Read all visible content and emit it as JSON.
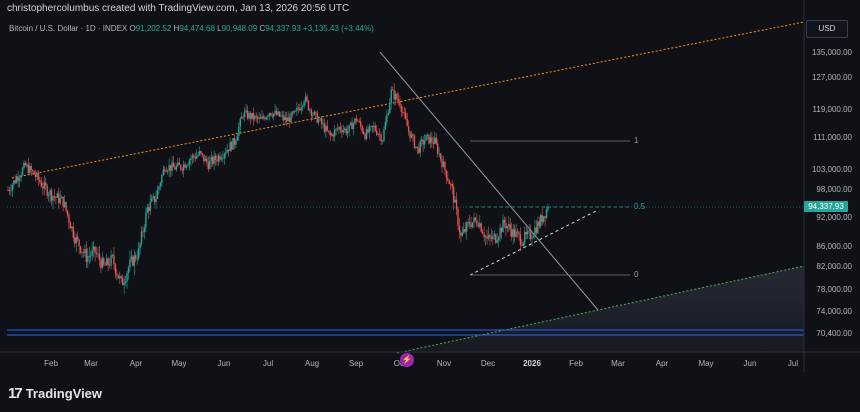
{
  "header": {
    "title": "christophercolumbus created with TradingView.com, Jan 13, 2026 20:56 UTC"
  },
  "legend": {
    "symbol": "Bitcoin / U.S. Dollar · 1D · INDEX",
    "open_label": "O",
    "open": "91,202.52",
    "high_label": "H",
    "high": "94,474.68",
    "low_label": "L",
    "low": "90,948.09",
    "close_label": "C",
    "close": "94,337.93",
    "change": "+3,135.43 (+3.44%)"
  },
  "currency": "USD",
  "current_price": "94,337.93",
  "fib_levels": [
    {
      "label": "1",
      "price": 110000
    },
    {
      "label": "0.5",
      "price": 94500
    },
    {
      "label": "0",
      "price": 80500
    }
  ],
  "event_icon": "lightning-icon",
  "branding": {
    "name": "TradingView",
    "logo_icon": "tradingview-logo-icon"
  },
  "colors": {
    "up": "#26a69a",
    "down": "#ef5350",
    "orange_trend": "#f7931a",
    "green_trend": "#4caf50",
    "blue_lines": "#2962ff",
    "background": "#0f1117"
  },
  "chart_data": {
    "type": "candlestick",
    "title": "Bitcoin / U.S. Dollar · 1D · INDEX",
    "y_ticks": [
      135000,
      127000,
      119000,
      111000,
      103000,
      98000,
      92000,
      86000,
      82000,
      78000,
      74000,
      70400
    ],
    "y_tick_labels": [
      "135,000.00",
      "127,000.00",
      "119,000.00",
      "111,000.00",
      "103,000.00",
      "98,000.00",
      "92,000.00",
      "86,000.00",
      "82,000.00",
      "78,000.00",
      "74,000.00",
      "70,400.00"
    ],
    "x_labels": [
      "Feb",
      "Mar",
      "Apr",
      "May",
      "Jun",
      "Jul",
      "Aug",
      "Sep",
      "Oct",
      "Nov",
      "Dec",
      "2026",
      "Feb",
      "Mar",
      "Apr",
      "May",
      "Jun",
      "Jul"
    ],
    "price_path": [
      [
        0,
        98000
      ],
      [
        6,
        101000
      ],
      [
        12,
        104000
      ],
      [
        18,
        102000
      ],
      [
        24,
        99000
      ],
      [
        30,
        97000
      ],
      [
        38,
        95500
      ],
      [
        46,
        88000
      ],
      [
        54,
        84000
      ],
      [
        60,
        85000
      ],
      [
        66,
        82000
      ],
      [
        72,
        83500
      ],
      [
        78,
        79000
      ],
      [
        84,
        82500
      ],
      [
        90,
        85000
      ],
      [
        96,
        94000
      ],
      [
        102,
        96500
      ],
      [
        108,
        104000
      ],
      [
        114,
        103500
      ],
      [
        120,
        104000
      ],
      [
        126,
        106000
      ],
      [
        132,
        107000
      ],
      [
        138,
        104500
      ],
      [
        144,
        106000
      ],
      [
        150,
        108000
      ],
      [
        156,
        110000
      ],
      [
        162,
        118000
      ],
      [
        168,
        117000
      ],
      [
        174,
        116000
      ],
      [
        180,
        118500
      ],
      [
        186,
        117500
      ],
      [
        192,
        116000
      ],
      [
        198,
        118000
      ],
      [
        204,
        122000
      ],
      [
        210,
        118000
      ],
      [
        216,
        115000
      ],
      [
        222,
        111500
      ],
      [
        228,
        114000
      ],
      [
        234,
        113000
      ],
      [
        240,
        116500
      ],
      [
        246,
        112000
      ],
      [
        252,
        114000
      ],
      [
        258,
        111000
      ],
      [
        264,
        123500
      ],
      [
        270,
        121000
      ],
      [
        276,
        113000
      ],
      [
        282,
        108000
      ],
      [
        288,
        111000
      ],
      [
        294,
        110000
      ],
      [
        300,
        104000
      ],
      [
        306,
        98000
      ],
      [
        312,
        88000
      ],
      [
        318,
        91000
      ],
      [
        324,
        91500
      ],
      [
        330,
        87500
      ],
      [
        336,
        88000
      ],
      [
        342,
        91000
      ],
      [
        348,
        89000
      ],
      [
        354,
        87500
      ],
      [
        360,
        88500
      ],
      [
        366,
        91000
      ],
      [
        372,
        94337
      ]
    ],
    "last_close": 94337.93,
    "fib_levels": [
      1,
      0.5,
      0
    ],
    "grid": false,
    "legend": "top-left"
  }
}
